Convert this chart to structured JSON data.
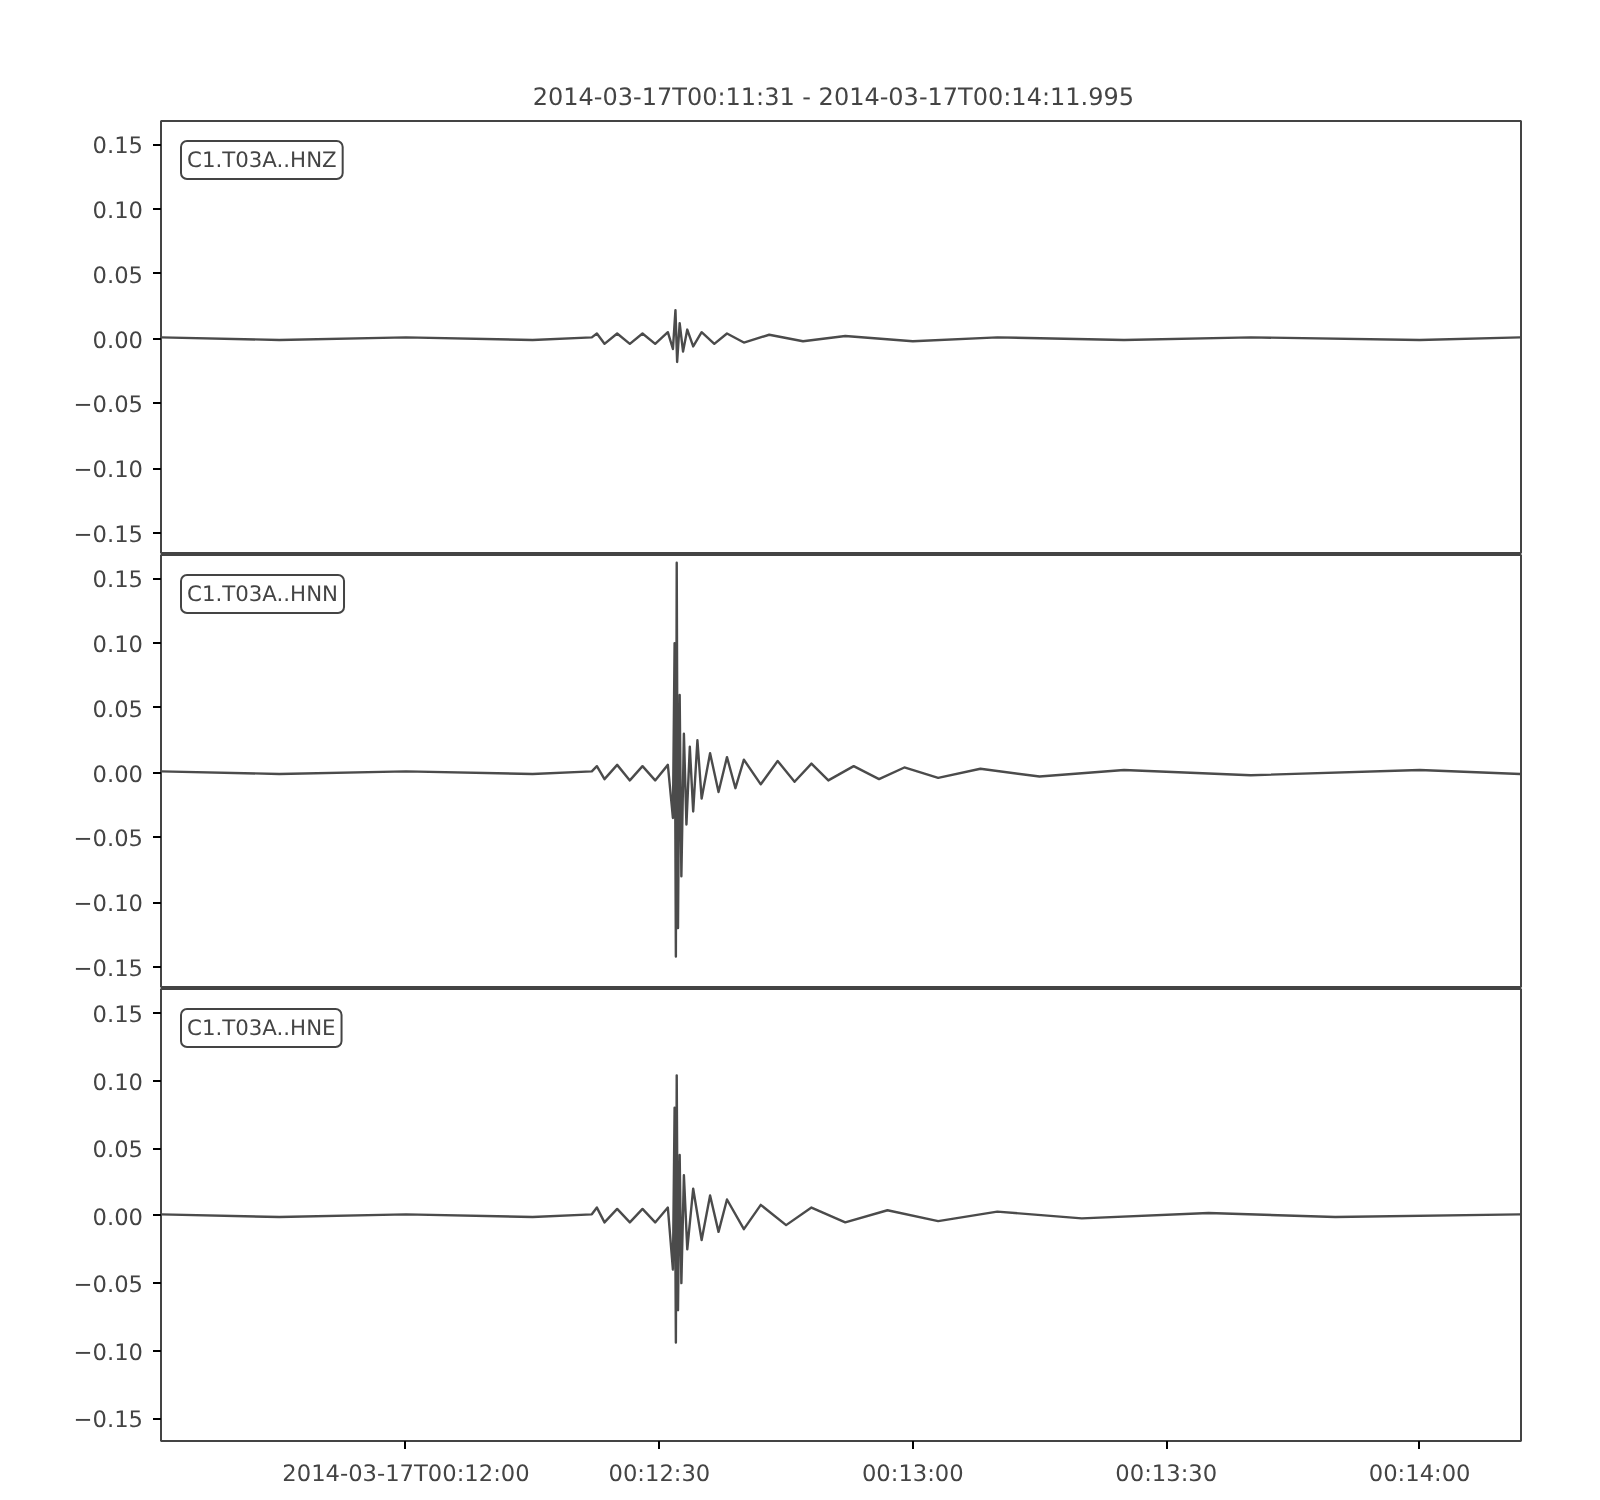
{
  "chart_data": [
    {
      "type": "line",
      "title": "2014-03-17T00:11:31  -  2014-03-17T00:14:11.995",
      "annotations": [
        "C1.T03A..HNZ"
      ],
      "tick_labels": "y",
      "grid": false,
      "xlim": [
        "2014-03-17T00:11:31",
        "2014-03-17T00:14:11.995"
      ],
      "ylim": [
        -0.167,
        0.168
      ],
      "yticks": [
        {
          "value": -0.15,
          "label": "−0.15"
        },
        {
          "value": -0.1,
          "label": "−0.10"
        },
        {
          "value": -0.05,
          "label": "−0.05"
        },
        {
          "value": 0,
          "label": "0.00"
        },
        {
          "value": 0.05,
          "label": "0.05"
        },
        {
          "value": 0.1,
          "label": "0.10"
        },
        {
          "value": 0.15,
          "label": "0.15"
        }
      ],
      "x": [
        "2014-03-17T00:11:31",
        "2014-03-17T00:11:45",
        "2014-03-17T00:12:00",
        "2014-03-17T00:12:15",
        "2014-03-17T00:12:22",
        "2014-03-17T00:12:22.6",
        "2014-03-17T00:12:23.5",
        "2014-03-17T00:12:25",
        "2014-03-17T00:12:26.5",
        "2014-03-17T00:12:28",
        "2014-03-17T00:12:29.5",
        "2014-03-17T00:12:31",
        "2014-03-17T00:12:31.6",
        "2014-03-17T00:12:31.9",
        "2014-03-17T00:12:32.1",
        "2014-03-17T00:12:32.4",
        "2014-03-17T00:12:32.8",
        "2014-03-17T00:12:33.3",
        "2014-03-17T00:12:34",
        "2014-03-17T00:12:35",
        "2014-03-17T00:12:36.5",
        "2014-03-17T00:12:38",
        "2014-03-17T00:12:40",
        "2014-03-17T00:12:43",
        "2014-03-17T00:12:47",
        "2014-03-17T00:12:52",
        "2014-03-17T00:13:00",
        "2014-03-17T00:13:10",
        "2014-03-17T00:13:25",
        "2014-03-17T00:13:40",
        "2014-03-17T00:14:00",
        "2014-03-17T00:14:11.9"
      ],
      "series": [
        {
          "color": "#4b4b4b",
          "values": [
            0.001,
            -0.001,
            0.001,
            -0.001,
            0.001,
            0.004,
            -0.004,
            0.004,
            -0.004,
            0.004,
            -0.004,
            0.005,
            -0.008,
            0.022,
            -0.018,
            0.012,
            -0.01,
            0.007,
            -0.006,
            0.005,
            -0.004,
            0.004,
            -0.003,
            0.003,
            -0.002,
            0.002,
            -0.002,
            0.001,
            -0.001,
            0.001,
            -0.001,
            0.001
          ]
        }
      ]
    },
    {
      "type": "line",
      "annotations": [
        "C1.T03A..HNN"
      ],
      "tick_labels": "y",
      "grid": false,
      "xlim": [
        "2014-03-17T00:11:31",
        "2014-03-17T00:14:11.995"
      ],
      "ylim": [
        -0.167,
        0.168
      ],
      "yticks": [
        {
          "value": -0.15,
          "label": "−0.15"
        },
        {
          "value": -0.1,
          "label": "−0.10"
        },
        {
          "value": -0.05,
          "label": "−0.05"
        },
        {
          "value": 0,
          "label": "0.00"
        },
        {
          "value": 0.05,
          "label": "0.05"
        },
        {
          "value": 0.1,
          "label": "0.10"
        },
        {
          "value": 0.15,
          "label": "0.15"
        }
      ],
      "x": [
        "2014-03-17T00:11:31",
        "2014-03-17T00:11:45",
        "2014-03-17T00:12:00",
        "2014-03-17T00:12:15",
        "2014-03-17T00:12:22",
        "2014-03-17T00:12:22.6",
        "2014-03-17T00:12:23.5",
        "2014-03-17T00:12:25",
        "2014-03-17T00:12:26.5",
        "2014-03-17T00:12:28",
        "2014-03-17T00:12:29.5",
        "2014-03-17T00:12:31",
        "2014-03-17T00:12:31.6",
        "2014-03-17T00:12:31.8",
        "2014-03-17T00:12:31.95",
        "2014-03-17T00:12:32.05",
        "2014-03-17T00:12:32.2",
        "2014-03-17T00:12:32.4",
        "2014-03-17T00:12:32.6",
        "2014-03-17T00:12:32.9",
        "2014-03-17T00:12:33.2",
        "2014-03-17T00:12:33.6",
        "2014-03-17T00:12:34",
        "2014-03-17T00:12:34.5",
        "2014-03-17T00:12:35",
        "2014-03-17T00:12:36",
        "2014-03-17T00:12:37",
        "2014-03-17T00:12:38",
        "2014-03-17T00:12:39",
        "2014-03-17T00:12:40",
        "2014-03-17T00:12:42",
        "2014-03-17T00:12:44",
        "2014-03-17T00:12:46",
        "2014-03-17T00:12:48",
        "2014-03-17T00:12:50",
        "2014-03-17T00:12:53",
        "2014-03-17T00:12:56",
        "2014-03-17T00:12:59",
        "2014-03-17T00:13:03",
        "2014-03-17T00:13:08",
        "2014-03-17T00:13:15",
        "2014-03-17T00:13:25",
        "2014-03-17T00:13:40",
        "2014-03-17T00:14:00",
        "2014-03-17T00:14:11.9"
      ],
      "series": [
        {
          "color": "#4b4b4b",
          "values": [
            0.001,
            -0.001,
            0.001,
            -0.001,
            0.001,
            0.005,
            -0.005,
            0.006,
            -0.006,
            0.005,
            -0.006,
            0.006,
            -0.035,
            0.1,
            -0.142,
            0.162,
            -0.12,
            0.06,
            -0.08,
            0.03,
            -0.04,
            0.02,
            -0.03,
            0.025,
            -0.02,
            0.015,
            -0.015,
            0.012,
            -0.012,
            0.01,
            -0.009,
            0.009,
            -0.007,
            0.007,
            -0.006,
            0.005,
            -0.005,
            0.004,
            -0.004,
            0.003,
            -0.003,
            0.002,
            -0.002,
            0.002,
            -0.001
          ]
        }
      ]
    },
    {
      "type": "line",
      "annotations": [
        "C1.T03A..HNE"
      ],
      "grid": false,
      "xlim": [
        "2014-03-17T00:11:31",
        "2014-03-17T00:14:11.995"
      ],
      "ylim": [
        -0.167,
        0.168
      ],
      "xticks": [
        {
          "value": "2014-03-17T00:12:00",
          "label": "2014-03-17T00:12:00"
        },
        {
          "value": "2014-03-17T00:12:30",
          "label": "00:12:30"
        },
        {
          "value": "2014-03-17T00:13:00",
          "label": "00:13:00"
        },
        {
          "value": "2014-03-17T00:13:30",
          "label": "00:13:30"
        },
        {
          "value": "2014-03-17T00:14:00",
          "label": "00:14:00"
        }
      ],
      "yticks": [
        {
          "value": -0.15,
          "label": "−0.15"
        },
        {
          "value": -0.1,
          "label": "−0.10"
        },
        {
          "value": -0.05,
          "label": "−0.05"
        },
        {
          "value": 0,
          "label": "0.00"
        },
        {
          "value": 0.05,
          "label": "0.05"
        },
        {
          "value": 0.1,
          "label": "0.10"
        },
        {
          "value": 0.15,
          "label": "0.15"
        }
      ],
      "x": [
        "2014-03-17T00:11:31",
        "2014-03-17T00:11:45",
        "2014-03-17T00:12:00",
        "2014-03-17T00:12:15",
        "2014-03-17T00:12:22",
        "2014-03-17T00:12:22.6",
        "2014-03-17T00:12:23.5",
        "2014-03-17T00:12:25",
        "2014-03-17T00:12:26.5",
        "2014-03-17T00:12:28",
        "2014-03-17T00:12:29.5",
        "2014-03-17T00:12:31",
        "2014-03-17T00:12:31.6",
        "2014-03-17T00:12:31.8",
        "2014-03-17T00:12:31.95",
        "2014-03-17T00:12:32.05",
        "2014-03-17T00:12:32.2",
        "2014-03-17T00:12:32.4",
        "2014-03-17T00:12:32.6",
        "2014-03-17T00:12:32.9",
        "2014-03-17T00:12:33.3",
        "2014-03-17T00:12:34",
        "2014-03-17T00:12:35",
        "2014-03-17T00:12:36",
        "2014-03-17T00:12:37",
        "2014-03-17T00:12:38",
        "2014-03-17T00:12:40",
        "2014-03-17T00:12:42",
        "2014-03-17T00:12:45",
        "2014-03-17T00:12:48",
        "2014-03-17T00:12:52",
        "2014-03-17T00:12:57",
        "2014-03-17T00:13:03",
        "2014-03-17T00:13:10",
        "2014-03-17T00:13:20",
        "2014-03-17T00:13:35",
        "2014-03-17T00:13:50",
        "2014-03-17T00:14:11.9"
      ],
      "series": [
        {
          "color": "#4b4b4b",
          "values": [
            0.001,
            -0.001,
            0.001,
            -0.001,
            0.001,
            0.006,
            -0.005,
            0.005,
            -0.005,
            0.005,
            -0.005,
            0.006,
            -0.04,
            0.08,
            -0.094,
            0.104,
            -0.07,
            0.045,
            -0.05,
            0.03,
            -0.025,
            0.02,
            -0.018,
            0.015,
            -0.012,
            0.012,
            -0.01,
            0.008,
            -0.007,
            0.006,
            -0.005,
            0.004,
            -0.004,
            0.003,
            -0.002,
            0.002,
            -0.001,
            0.001
          ]
        }
      ]
    }
  ]
}
